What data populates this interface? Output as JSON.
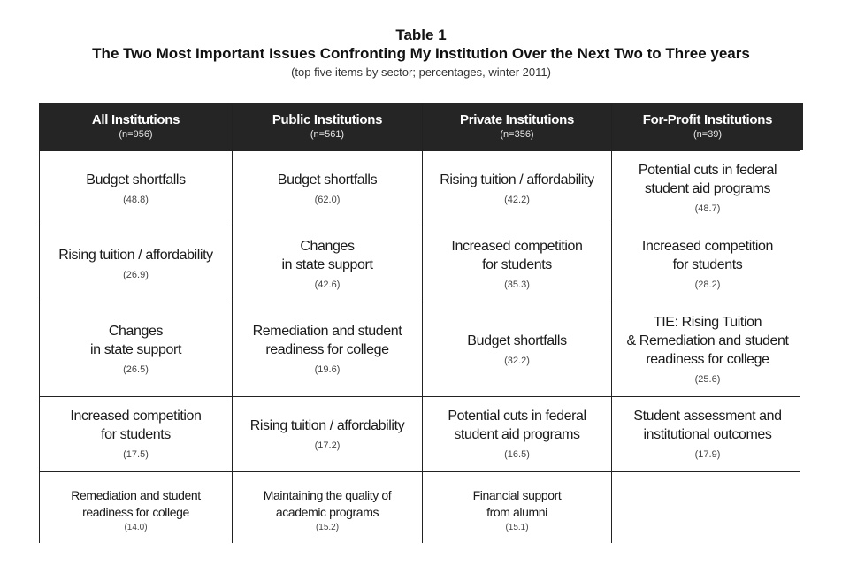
{
  "table_label": "Table 1",
  "title": "The Two Most Important Issues Confronting My Institution Over the Next Two to Three years",
  "subtitle": "(top five items by sector; percentages, winter 2011)",
  "columns": [
    {
      "name": "All Institutions",
      "n": "(n=956)"
    },
    {
      "name": "Public Institutions",
      "n": "(n=561)"
    },
    {
      "name": "Private Institutions",
      "n": "(n=356)"
    },
    {
      "name": "For-Profit Institutions",
      "n": "(n=39)"
    }
  ],
  "rows": [
    [
      {
        "issue": "Budget shortfalls",
        "pct": "(48.8)"
      },
      {
        "issue": "Budget shortfalls",
        "pct": "(62.0)"
      },
      {
        "issue": "Rising tuition / affordability",
        "pct": "(42.2)"
      },
      {
        "issue": "Potential cuts in federal\nstudent aid programs",
        "pct": "(48.7)"
      }
    ],
    [
      {
        "issue": "Rising tuition / affordability",
        "pct": "(26.9)"
      },
      {
        "issue": "Changes\nin state support",
        "pct": "(42.6)"
      },
      {
        "issue": "Increased competition\nfor students",
        "pct": "(35.3)"
      },
      {
        "issue": "Increased competition\nfor students",
        "pct": "(28.2)"
      }
    ],
    [
      {
        "issue": "Changes\nin state support",
        "pct": "(26.5)"
      },
      {
        "issue": "Remediation and student\nreadiness for college",
        "pct": "(19.6)"
      },
      {
        "issue": "Budget shortfalls",
        "pct": "(32.2)"
      },
      {
        "issue": "TIE: Rising Tuition\n& Remediation and student\nreadiness for college",
        "pct": "(25.6)"
      }
    ],
    [
      {
        "issue": "Increased competition\nfor students",
        "pct": "(17.5)"
      },
      {
        "issue": "Rising tuition / affordability",
        "pct": "(17.2)"
      },
      {
        "issue": "Potential cuts in federal\nstudent aid programs",
        "pct": "(16.5)"
      },
      {
        "issue": "Student assessment and\ninstitutional outcomes",
        "pct": "(17.9)"
      }
    ],
    [
      {
        "issue": "Remediation and student\nreadiness for college",
        "pct": "(14.0)"
      },
      {
        "issue": "Maintaining the quality of\nacademic programs",
        "pct": "(15.2)"
      },
      {
        "issue": "Financial support\nfrom alumni",
        "pct": "(15.1)"
      },
      {
        "issue": "",
        "pct": ""
      }
    ]
  ]
}
